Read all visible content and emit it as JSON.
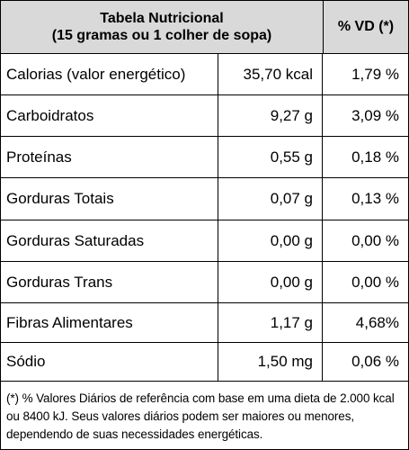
{
  "table": {
    "title_line1": "Tabela Nutricional",
    "title_line2": "(15 gramas ou 1 colher de sopa)",
    "vd_header": "% VD (*)",
    "rows": [
      {
        "name": "Calorias (valor energético)",
        "amount": "35,70 kcal",
        "vd": "1,79 %"
      },
      {
        "name": "Carboidratos",
        "amount": "9,27 g",
        "vd": "3,09 %"
      },
      {
        "name": "Proteínas",
        "amount": "0,55 g",
        "vd": "0,18 %"
      },
      {
        "name": "Gorduras Totais",
        "amount": "0,07 g",
        "vd": "0,13 %"
      },
      {
        "name": "Gorduras Saturadas",
        "amount": "0,00 g",
        "vd": "0,00 %"
      },
      {
        "name": "Gorduras Trans",
        "amount": "0,00 g",
        "vd": "0,00 %"
      },
      {
        "name": "Fibras Alimentares",
        "amount": "1,17 g",
        "vd": "4,68%"
      },
      {
        "name": "Sódio",
        "amount": "1,50 mg",
        "vd": "0,06 %"
      }
    ],
    "footnote": "(*) % Valores Diários de referência com base em uma dieta de 2.000 kcal ou 8400 kJ. Seus valores diários podem ser maiores ou menores, dependendo de suas necessidades energéticas."
  }
}
